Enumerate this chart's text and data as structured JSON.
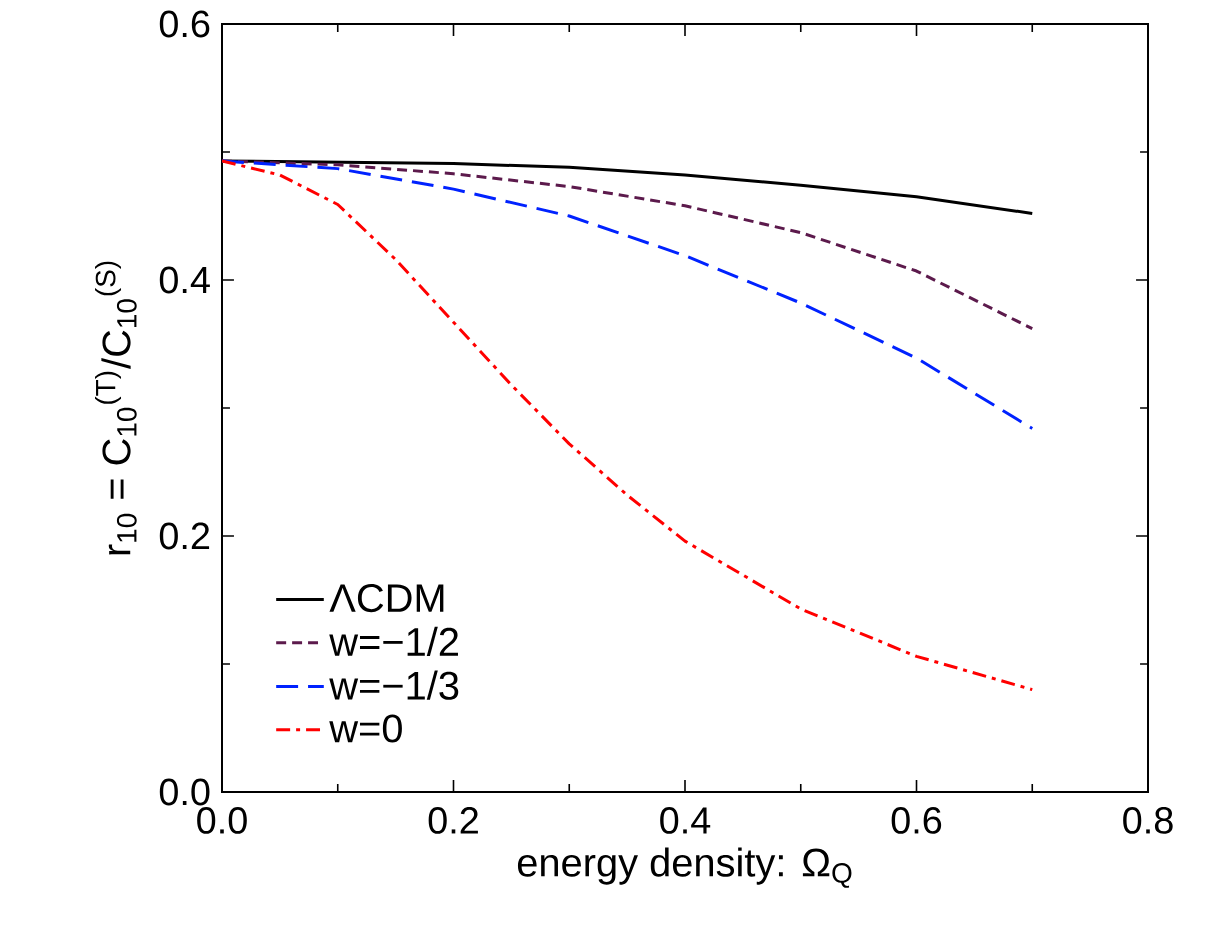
{
  "chart_data": {
    "type": "line",
    "xlabel": "energy density: Ω$_{Q}$",
    "ylabel": "r$_{10}$ = C$_{10}$$^{(T)}$/C$_{10}$$^{(S)}$",
    "xlim": [
      0,
      0.8
    ],
    "ylim": [
      0,
      0.6
    ],
    "xticks": [
      {
        "value": 0,
        "label": "0.0"
      },
      0.2,
      0.4,
      0.6,
      0.8
    ],
    "yticks": [
      {
        "value": 0,
        "label": "0.0"
      },
      0.2,
      0.4,
      0.6
    ],
    "legend": "bottom left",
    "grid": false,
    "series": [
      {
        "name": "ΛCDM",
        "color": "#000000",
        "line_style": "solid",
        "x": [
          0,
          0.1,
          0.2,
          0.3,
          0.4,
          0.5,
          0.6,
          0.7
        ],
        "values": [
          0.493,
          0.492,
          0.491,
          0.488,
          0.482,
          0.474,
          0.465,
          0.452
        ]
      },
      {
        "name": "w=−1/2",
        "color": "#5c1a4c",
        "line_style": "dashed",
        "x": [
          0,
          0.1,
          0.2,
          0.3,
          0.4,
          0.5,
          0.6,
          0.7
        ],
        "values": [
          0.493,
          0.49,
          0.483,
          0.473,
          0.458,
          0.437,
          0.407,
          0.362
        ]
      },
      {
        "name": "w=−1/3",
        "color": "#0022ff",
        "line_style": "longdashed",
        "x": [
          0,
          0.1,
          0.2,
          0.3,
          0.4,
          0.5,
          0.6,
          0.7
        ],
        "values": [
          0.493,
          0.487,
          0.471,
          0.45,
          0.419,
          0.382,
          0.339,
          0.284
        ]
      },
      {
        "name": "w=0",
        "color": "#ff0000",
        "line_style": "dashdot",
        "x": [
          0,
          0.05,
          0.1,
          0.15,
          0.2,
          0.25,
          0.3,
          0.35,
          0.4,
          0.5,
          0.6,
          0.7
        ],
        "values": [
          0.493,
          0.482,
          0.459,
          0.416,
          0.367,
          0.318,
          0.272,
          0.232,
          0.196,
          0.143,
          0.106,
          0.08
        ]
      }
    ]
  }
}
